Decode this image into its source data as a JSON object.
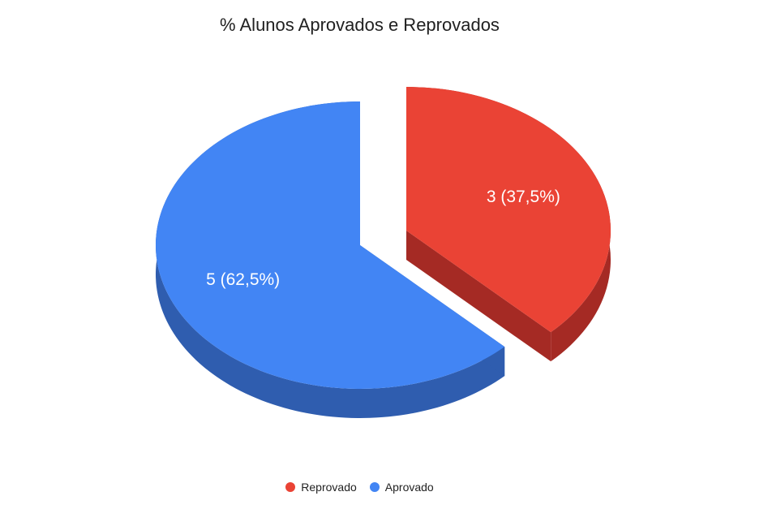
{
  "chart_data": {
    "type": "pie",
    "title": "% Alunos Aprovados e Reprovados",
    "three_d": true,
    "exploded_slice": "Reprovado",
    "legend_position": "bottom",
    "slices": [
      {
        "name": "Reprovado",
        "value": 3,
        "percent": 37.5,
        "label": "3 (37,5%)",
        "color": "#ea4335",
        "side_color": "#a52a24"
      },
      {
        "name": "Aprovado",
        "value": 5,
        "percent": 62.5,
        "label": "5 (62,5%)",
        "color": "#4285f4",
        "side_color": "#2f5daf"
      }
    ]
  },
  "legend": {
    "items": [
      {
        "label": "Reprovado",
        "color": "#ea4335"
      },
      {
        "label": "Aprovado",
        "color": "#4285f4"
      }
    ]
  }
}
